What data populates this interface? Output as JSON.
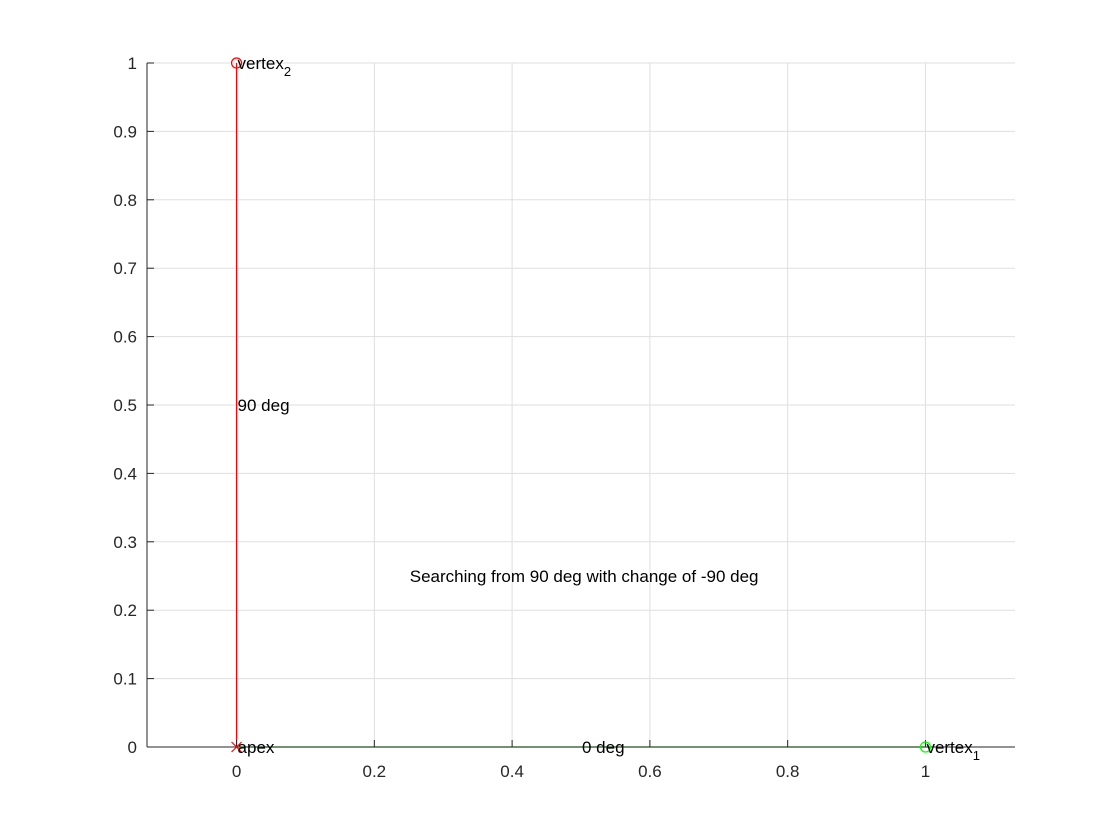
{
  "chart_data": {
    "type": "line",
    "xlim": [
      -0.13,
      1.13
    ],
    "ylim": [
      0,
      1
    ],
    "grid": true,
    "x_ticks": [
      {
        "value": 0,
        "label": "0"
      },
      {
        "value": 0.2,
        "label": "0.2"
      },
      {
        "value": 0.4,
        "label": "0.4"
      },
      {
        "value": 0.6,
        "label": "0.6"
      },
      {
        "value": 0.8,
        "label": "0.8"
      },
      {
        "value": 1,
        "label": "1"
      }
    ],
    "y_ticks": [
      {
        "value": 0,
        "label": "0"
      },
      {
        "value": 0.1,
        "label": "0.1"
      },
      {
        "value": 0.2,
        "label": "0.2"
      },
      {
        "value": 0.3,
        "label": "0.3"
      },
      {
        "value": 0.4,
        "label": "0.4"
      },
      {
        "value": 0.5,
        "label": "0.5"
      },
      {
        "value": 0.6,
        "label": "0.6"
      },
      {
        "value": 0.7,
        "label": "0.7"
      },
      {
        "value": 0.8,
        "label": "0.8"
      },
      {
        "value": 0.9,
        "label": "0.9"
      },
      {
        "value": 1,
        "label": "1"
      }
    ],
    "series": [
      {
        "color": "#ff0000",
        "x": [
          0,
          0
        ],
        "y": [
          0,
          1
        ]
      },
      {
        "color": "#00ff00",
        "x": [
          0,
          1
        ],
        "y": [
          0,
          0
        ]
      }
    ],
    "markers": [
      {
        "shape": "x",
        "color": "#ff0000",
        "x": 0,
        "y": 0
      },
      {
        "shape": "circle",
        "color": "#ff0000",
        "x": 0,
        "y": 1
      },
      {
        "shape": "circle",
        "color": "#00ff00",
        "x": 1,
        "y": 0
      }
    ],
    "annotations": [
      {
        "text": "vertex",
        "sub": "2",
        "x": 0,
        "y": 1
      },
      {
        "text": "vertex",
        "sub": "1",
        "x": 1,
        "y": 0
      },
      {
        "text": "apex",
        "sub": "",
        "x": 0,
        "y": 0
      },
      {
        "text": "90 deg",
        "sub": "",
        "x": 0,
        "y": 0.5
      },
      {
        "text": "0 deg",
        "sub": "",
        "x": 0.5,
        "y": 0
      },
      {
        "text": "Searching from 90 deg with change of -90 deg",
        "sub": "",
        "x": 0.25,
        "y": 0.25
      }
    ]
  }
}
